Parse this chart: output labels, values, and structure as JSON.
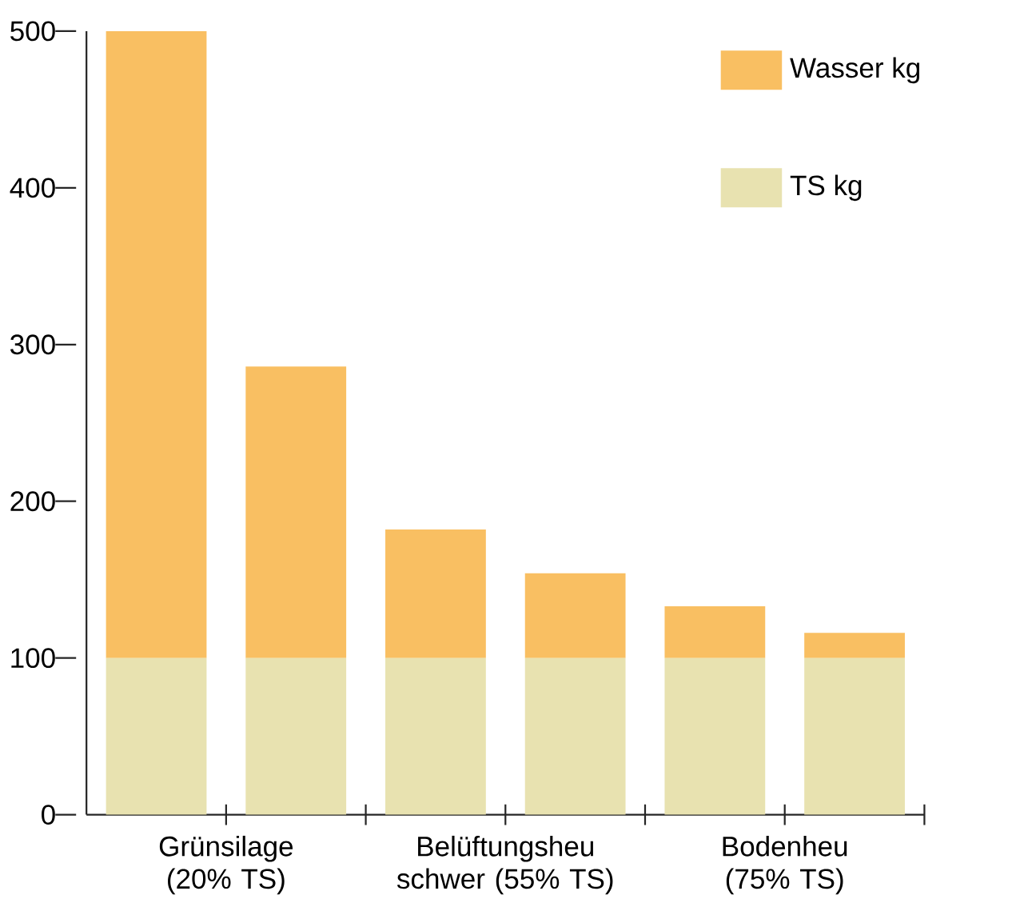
{
  "chart_data": {
    "type": "bar",
    "stacked": true,
    "categories": [
      "Grünsilage (20% TS)",
      null,
      "Belüftungsheu schwer (55% TS)",
      null,
      "Bodenheu (75% TS)",
      null
    ],
    "series": [
      {
        "name": "TS kg",
        "color": "#e8e2b0",
        "values": [
          100,
          100,
          100,
          100,
          100,
          100
        ]
      },
      {
        "name": "Wasser kg",
        "color": "#f9bf62",
        "values": [
          400,
          186,
          82,
          54,
          33,
          16
        ]
      }
    ],
    "ylim": [
      0,
      500
    ],
    "yticks": [
      0,
      100,
      200,
      300,
      400,
      500
    ],
    "grid": false,
    "legend": "top right"
  }
}
